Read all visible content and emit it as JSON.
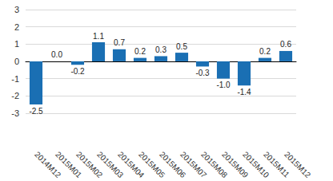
{
  "chart_data": {
    "type": "bar",
    "categories": [
      "2014M12",
      "2015M01",
      "2015M02",
      "2015M03",
      "2015M04",
      "2015M05",
      "2015M06",
      "2015M07",
      "2015M08",
      "2015M09",
      "2015M10",
      "2015M11",
      "2015M12"
    ],
    "values": [
      -2.5,
      0.0,
      -0.2,
      1.1,
      0.7,
      0.2,
      0.3,
      0.5,
      -0.3,
      -1.0,
      -1.4,
      0.2,
      0.6
    ],
    "value_labels": [
      "-2.5",
      "0.0",
      "-0.2",
      "1.1",
      "0.7",
      "0.2",
      "0.3",
      "0.5",
      "-0.3",
      "-1.0",
      "-1.4",
      "0.2",
      "0.6"
    ],
    "color": "#1a6fb3",
    "ylim": [
      -3,
      3
    ],
    "yticks": [
      -3,
      -2,
      -1,
      0,
      1,
      2,
      3
    ],
    "grid": true,
    "data_labels": true
  }
}
